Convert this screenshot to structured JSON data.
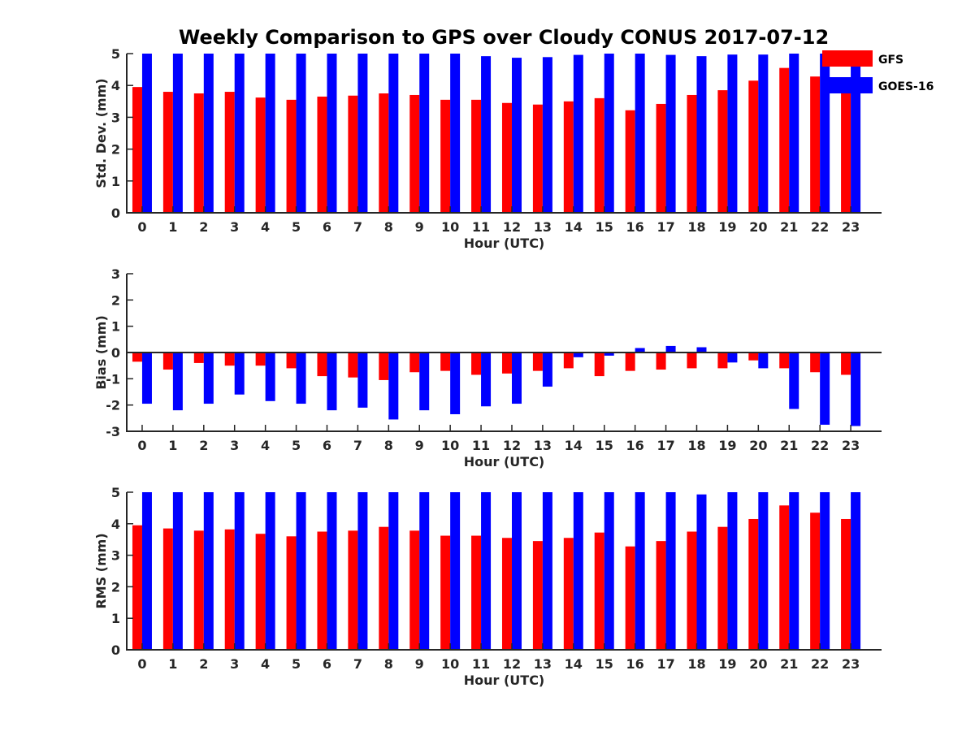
{
  "chart_data": {
    "type": "bar",
    "title": "Weekly Comparison to GPS over Cloudy CONUS 2017-07-12",
    "categories": [
      "0",
      "1",
      "2",
      "3",
      "4",
      "5",
      "6",
      "7",
      "8",
      "9",
      "10",
      "11",
      "12",
      "13",
      "14",
      "15",
      "16",
      "17",
      "18",
      "19",
      "20",
      "21",
      "22",
      "23"
    ],
    "colors": {
      "GFS": "#ff0000",
      "GOES-16": "#0000ff",
      "axis": "#262626"
    },
    "legend": {
      "position": "top-right",
      "entries": [
        "GFS",
        "GOES-16"
      ]
    },
    "panels": [
      {
        "id": "std",
        "xlabel": "Hour (UTC)",
        "ylabel": "Std. Dev. (mm)",
        "ylim": [
          0,
          5
        ],
        "yticks": [
          0,
          1,
          2,
          3,
          4,
          5
        ],
        "series": [
          {
            "name": "GFS",
            "values": [
              3.95,
              3.8,
              3.75,
              3.8,
              3.62,
              3.55,
              3.65,
              3.68,
              3.75,
              3.7,
              3.55,
              3.55,
              3.45,
              3.4,
              3.5,
              3.6,
              3.22,
              3.42,
              3.7,
              3.85,
              4.15,
              4.55,
              4.28,
              3.9
            ]
          },
          {
            "name": "GOES-16",
            "values": [
              5.0,
              5.0,
              5.0,
              5.0,
              5.0,
              5.0,
              5.0,
              5.0,
              5.0,
              5.0,
              5.0,
              4.92,
              4.87,
              4.89,
              4.96,
              5.0,
              5.0,
              4.96,
              4.92,
              4.97,
              4.97,
              5.0,
              5.0,
              5.0
            ]
          }
        ]
      },
      {
        "id": "bias",
        "xlabel": "Hour (UTC)",
        "ylabel": "Bias (mm)",
        "ylim": [
          -3,
          3
        ],
        "yticks": [
          -3,
          -2,
          -1,
          0,
          1,
          2,
          3
        ],
        "series": [
          {
            "name": "GFS",
            "values": [
              -0.35,
              -0.65,
              -0.4,
              -0.5,
              -0.5,
              -0.6,
              -0.9,
              -0.95,
              -1.05,
              -0.75,
              -0.7,
              -0.85,
              -0.8,
              -0.7,
              -0.6,
              -0.9,
              -0.7,
              -0.65,
              -0.6,
              -0.6,
              -0.3,
              -0.6,
              -0.75,
              -0.85
            ]
          },
          {
            "name": "GOES-16",
            "values": [
              -1.95,
              -2.2,
              -1.95,
              -1.6,
              -1.85,
              -1.95,
              -2.2,
              -2.1,
              -2.55,
              -2.2,
              -2.35,
              -2.05,
              -1.95,
              -1.3,
              -0.18,
              -0.12,
              0.17,
              0.25,
              0.2,
              -0.38,
              -0.6,
              -2.15,
              -2.75,
              -2.8
            ]
          }
        ]
      },
      {
        "id": "rms",
        "xlabel": "Hour (UTC)",
        "ylabel": "RMS (mm)",
        "ylim": [
          0,
          5
        ],
        "yticks": [
          0,
          1,
          2,
          3,
          4,
          5
        ],
        "series": [
          {
            "name": "GFS",
            "values": [
              3.95,
              3.85,
              3.78,
              3.82,
              3.68,
              3.6,
              3.75,
              3.78,
              3.9,
              3.78,
              3.62,
              3.62,
              3.55,
              3.45,
              3.55,
              3.72,
              3.28,
              3.45,
              3.75,
              3.9,
              4.15,
              4.58,
              4.35,
              4.15
            ]
          },
          {
            "name": "GOES-16",
            "values": [
              5.0,
              5.0,
              5.0,
              5.0,
              5.0,
              5.0,
              5.0,
              5.0,
              5.0,
              5.0,
              5.0,
              5.0,
              5.0,
              5.0,
              5.0,
              5.0,
              5.0,
              5.0,
              4.93,
              5.0,
              5.0,
              5.0,
              5.0,
              5.0
            ]
          }
        ]
      }
    ]
  }
}
